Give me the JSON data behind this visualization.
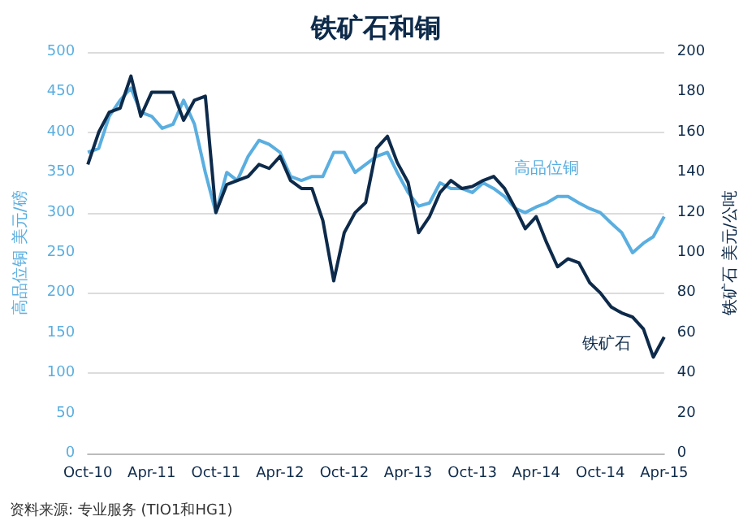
{
  "chart_data": {
    "type": "line",
    "title": "铁矿石和铜",
    "ylabel": "高品位铜 美元/磅",
    "y2label": "铁矿石 美元/公吨",
    "x": [
      "2010-10",
      "2010-11",
      "2010-12",
      "2011-01",
      "2011-02",
      "2011-03",
      "2011-04",
      "2011-05",
      "2011-06",
      "2011-07",
      "2011-08",
      "2011-09",
      "2011-10",
      "2011-11",
      "2011-12",
      "2012-01",
      "2012-02",
      "2012-03",
      "2012-04",
      "2012-05",
      "2012-06",
      "2012-07",
      "2012-08",
      "2012-09",
      "2012-10",
      "2012-11",
      "2012-12",
      "2013-01",
      "2013-02",
      "2013-03",
      "2013-04",
      "2013-05",
      "2013-06",
      "2013-07",
      "2013-08",
      "2013-09",
      "2013-10",
      "2013-11",
      "2013-12",
      "2014-01",
      "2014-02",
      "2014-03",
      "2014-04",
      "2014-05",
      "2014-06",
      "2014-07",
      "2014-08",
      "2014-09",
      "2014-10",
      "2014-11",
      "2014-12",
      "2015-01",
      "2015-02",
      "2015-03",
      "2015-04"
    ],
    "series": [
      {
        "name": "高品位铜",
        "color": "#5aaee0",
        "values": [
          375,
          380,
          420,
          440,
          455,
          425,
          420,
          405,
          410,
          440,
          410,
          350,
          300,
          350,
          340,
          370,
          390,
          385,
          375,
          345,
          340,
          345,
          345,
          375,
          375,
          350,
          360,
          370,
          375,
          350,
          325,
          308,
          312,
          337,
          330,
          330,
          325,
          337,
          330,
          320,
          305,
          300,
          307,
          312,
          320,
          320,
          312,
          305,
          300,
          287,
          275,
          250,
          262,
          270,
          295
        ]
      },
      {
        "name": "铁矿石",
        "color": "#0d2a4a",
        "axis": "y2",
        "values": [
          144,
          160,
          170,
          172,
          188,
          168,
          180,
          180,
          180,
          166,
          176,
          178,
          120,
          134,
          136,
          138,
          144,
          142,
          148,
          136,
          132,
          132,
          116,
          86,
          110,
          120,
          125,
          152,
          158,
          145,
          135,
          110,
          118,
          130,
          136,
          132,
          133,
          136,
          138,
          132,
          122,
          112,
          118,
          105,
          93,
          97,
          95,
          85,
          80,
          73,
          70,
          68,
          62,
          48,
          58
        ]
      }
    ],
    "xlim": [
      "2010-10",
      "2015-04"
    ],
    "xticks": [
      {
        "value": "2010-10",
        "label": "Oct-10"
      },
      {
        "value": "2011-04",
        "label": "Apr-11"
      },
      {
        "value": "2011-10",
        "label": "Oct-11"
      },
      {
        "value": "2012-04",
        "label": "Apr-12"
      },
      {
        "value": "2012-10",
        "label": "Oct-12"
      },
      {
        "value": "2013-04",
        "label": "Apr-13"
      },
      {
        "value": "2013-10",
        "label": "Oct-13"
      },
      {
        "value": "2014-04",
        "label": "Apr-14"
      },
      {
        "value": "2014-10",
        "label": "Oct-14"
      },
      {
        "value": "2015-04",
        "label": "Apr-15"
      }
    ],
    "ylim": [
      0,
      500
    ],
    "yticks": [
      0,
      50,
      100,
      150,
      200,
      250,
      300,
      350,
      400,
      450,
      500
    ],
    "y2lim": [
      0,
      200
    ],
    "y2ticks": [
      0,
      20,
      40,
      60,
      80,
      100,
      120,
      140,
      160,
      180,
      200
    ],
    "grid": "y",
    "legend": false,
    "marker": "none",
    "line_style": "solid",
    "annotations": [
      "资料来源: 专业服务 (TIO1和HG1)"
    ]
  }
}
